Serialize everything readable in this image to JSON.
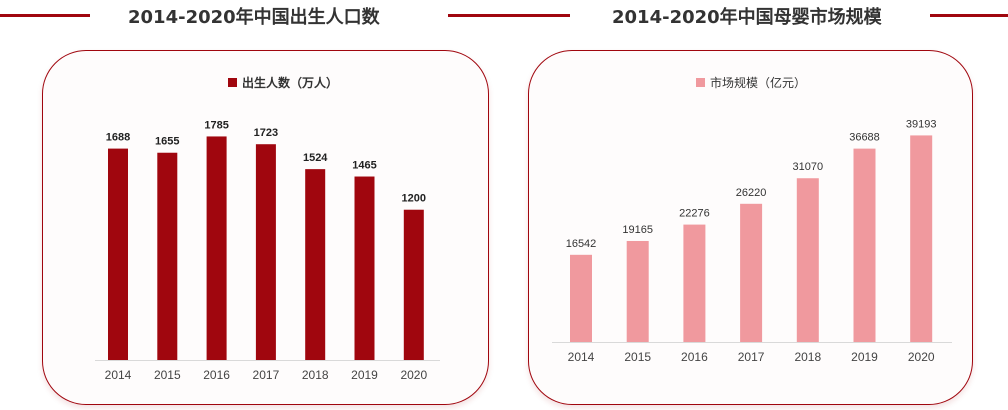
{
  "chart_data": [
    {
      "type": "bar",
      "title": "2014-2020年中国出生人口数",
      "legend": "出生人数（万人）",
      "categories": [
        "2014",
        "2015",
        "2016",
        "2017",
        "2018",
        "2019",
        "2020"
      ],
      "series": [
        {
          "name": "出生人数（万人）",
          "values": [
            1688,
            1655,
            1785,
            1723,
            1524,
            1465,
            1200
          ]
        }
      ],
      "color": "#a0060e",
      "ylim": [
        0,
        2100
      ],
      "legend_position": "top-center",
      "grid": false
    },
    {
      "type": "bar",
      "title": "2014-2020年中国母婴市场规模",
      "legend": "市场规模（亿元）",
      "categories": [
        "2014",
        "2015",
        "2016",
        "2017",
        "2018",
        "2019",
        "2020"
      ],
      "series": [
        {
          "name": "市场规模（亿元）",
          "values": [
            16542,
            19165,
            22276,
            26220,
            31070,
            36688,
            39193
          ]
        }
      ],
      "color": "#f0999e",
      "ylim": [
        0,
        48000
      ],
      "legend_position": "top-center",
      "grid": false
    }
  ],
  "colors": {
    "accent": "#a0060e",
    "card_border": "#a0060e",
    "title_text": "#333333"
  }
}
